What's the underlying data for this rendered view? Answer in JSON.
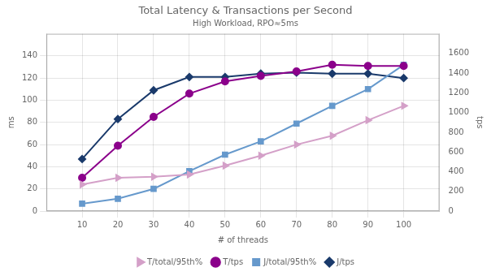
{
  "chart_data": {
    "type": "line",
    "title": "Total Latency & Transactions per Second",
    "subtitle": "High Workload, RPO≈5ms",
    "xlabel": "# of threads",
    "ylabel": "ms",
    "y2label": "tps",
    "x": [
      10,
      20,
      30,
      40,
      50,
      60,
      70,
      80,
      90,
      100
    ],
    "xlim": [
      0,
      110
    ],
    "xticks": [
      10,
      20,
      30,
      40,
      50,
      60,
      70,
      80,
      90,
      100
    ],
    "ylim": [
      0,
      160
    ],
    "yticks": [
      0,
      20,
      40,
      60,
      80,
      100,
      120,
      140
    ],
    "y2lim": [
      0,
      1800
    ],
    "y2ticks": [
      0,
      200,
      400,
      600,
      800,
      1000,
      1200,
      1400,
      1600
    ],
    "grid": true,
    "legend": "bottom",
    "series": [
      {
        "name": "T/total/95th%",
        "color": "#d4a0c8",
        "marker": "triangle_right",
        "values": [
          24,
          30,
          31,
          33,
          41,
          50,
          60,
          68,
          82,
          95
        ]
      },
      {
        "name": "T/tps",
        "color": "#8b008b",
        "marker": "circle",
        "values": [
          30,
          59,
          85,
          106,
          117,
          122,
          126,
          132,
          131,
          131
        ]
      },
      {
        "name": "J/total/95th%",
        "color": "#6699cc",
        "marker": "square",
        "axis": "y2",
        "values": [
          75,
          125,
          225,
          405,
          573,
          708,
          888,
          1068,
          1238,
          1485
        ]
      },
      {
        "name": "J/tps",
        "color": "#1a3a6b",
        "marker": "diamond",
        "axis": "y2",
        "values": [
          528,
          934,
          1226,
          1361,
          1361,
          1395,
          1406,
          1395,
          1395,
          1350
        ]
      }
    ]
  }
}
